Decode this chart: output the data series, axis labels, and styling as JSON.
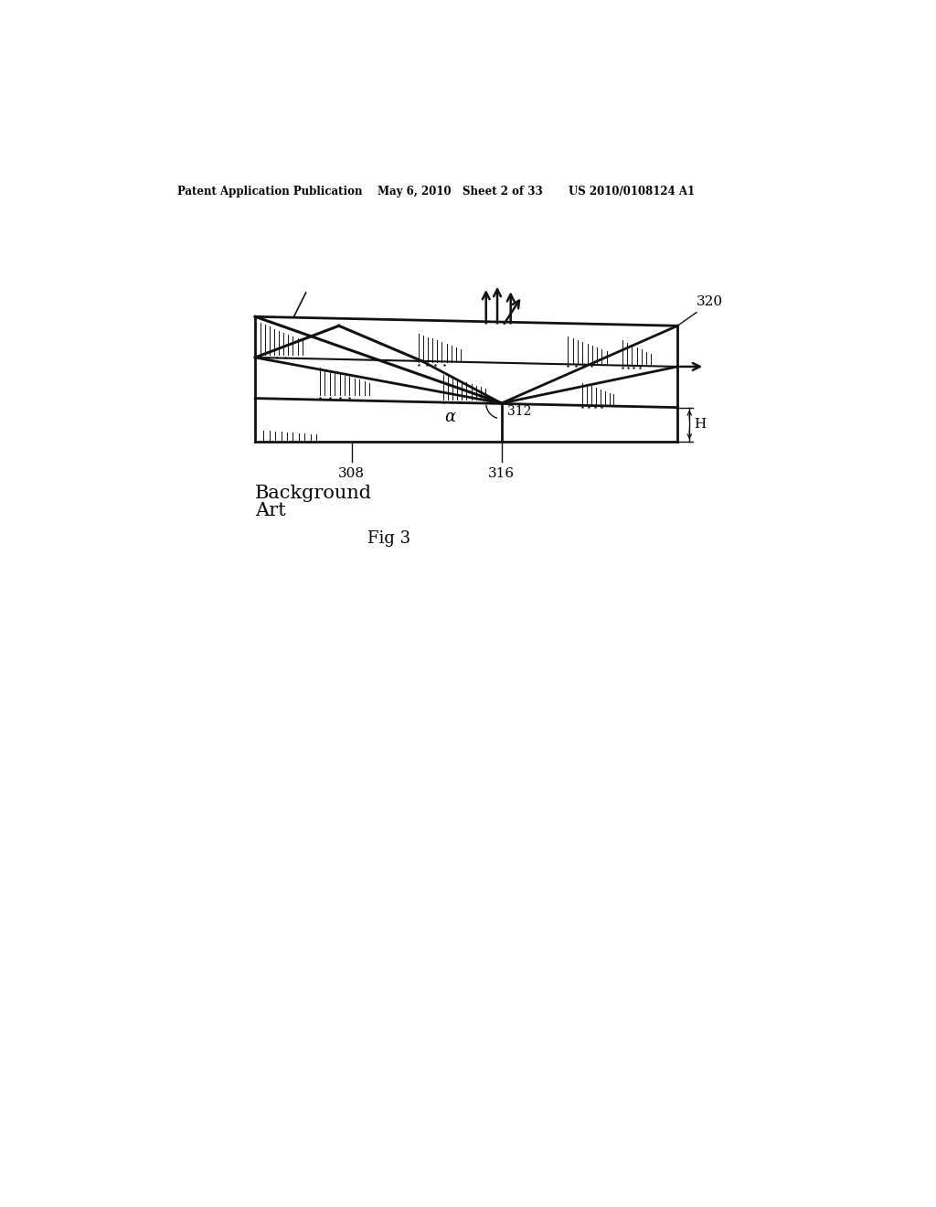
{
  "background_color": "#ffffff",
  "header_left": "Patent Application Publication",
  "header_mid": "May 6, 2010   Sheet 2 of 33",
  "header_right": "US 2010/0108124 A1",
  "fig_label": "Fig 3",
  "background_art_line1": "Background",
  "background_art_line2": "Art",
  "label_320": "320",
  "label_312": "312",
  "label_308": "308",
  "label_316": "316",
  "label_H": "H",
  "label_alpha": "α"
}
